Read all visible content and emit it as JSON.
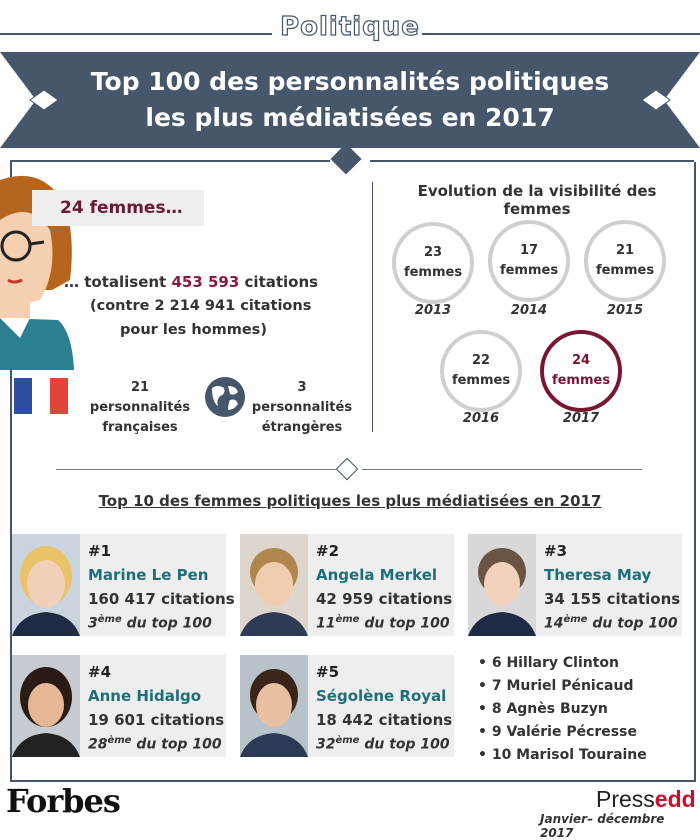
{
  "header": {
    "category": "Politique",
    "title_line1": "Top 100 des personnalités politiques",
    "title_line2": "les plus médiatisées en 2017"
  },
  "women_summary": {
    "count_label": "24 femmes…",
    "total_prefix": "… totalisent ",
    "total_value": "453 593",
    "total_suffix": " citations",
    "compare_line1": "(contre 2 214 941 citations",
    "compare_line2": "pour les hommes)",
    "french_line1": "21 personnalités",
    "french_line2": "françaises",
    "foreign_line1": "3 personnalités",
    "foreign_line2": "étrangères"
  },
  "evolution": {
    "title": "Evolution de la visibilité des femmes",
    "items": [
      {
        "count": "23",
        "unit": "femmes",
        "year": "2013"
      },
      {
        "count": "17",
        "unit": "femmes",
        "year": "2014"
      },
      {
        "count": "21",
        "unit": "femmes",
        "year": "2015"
      },
      {
        "count": "22",
        "unit": "femmes",
        "year": "2016"
      },
      {
        "count": "24",
        "unit": "femmes",
        "year": "2017"
      }
    ],
    "highlight_color": "#7a1530"
  },
  "top10": {
    "title": "Top 10 des femmes politiques les plus médiatisées en 2017",
    "cards": [
      {
        "rank": "#1",
        "name": "Marine Le Pen",
        "citations": "160 417 citations",
        "pos": "3",
        "sup": "ème",
        "suffix": " du top 100"
      },
      {
        "rank": "#2",
        "name": "Angela Merkel",
        "citations": "42 959 citations",
        "pos": "11",
        "sup": "ème",
        "suffix": " du top 100"
      },
      {
        "rank": "#3",
        "name": "Theresa May",
        "citations": "34 155 citations",
        "pos": "14",
        "sup": "ème",
        "suffix": " du top 100"
      },
      {
        "rank": "#4",
        "name": "Anne Hidalgo",
        "citations": "19 601 citations",
        "pos": "28",
        "sup": "ème",
        "suffix": " du top 100"
      },
      {
        "rank": "#5",
        "name": "Ségolène Royal",
        "citations": "18 442 citations",
        "pos": "32",
        "sup": "ème",
        "suffix": " du top 100"
      }
    ],
    "others": [
      "• 6  Hillary Clinton",
      "• 7  Muriel Pénicaud",
      "• 8  Agnès Buzyn",
      "• 9  Valérie Pécresse",
      "• 10  Marisol Touraine"
    ]
  },
  "footer": {
    "forbes": "Forbes",
    "pressedd_a": "Press",
    "pressedd_b": "edd",
    "date": "Janvier– décembre 2017"
  },
  "colors": {
    "banner": "#46566b",
    "name_teal": "#1e6e7a",
    "accent_red": "#8a1a3c"
  }
}
